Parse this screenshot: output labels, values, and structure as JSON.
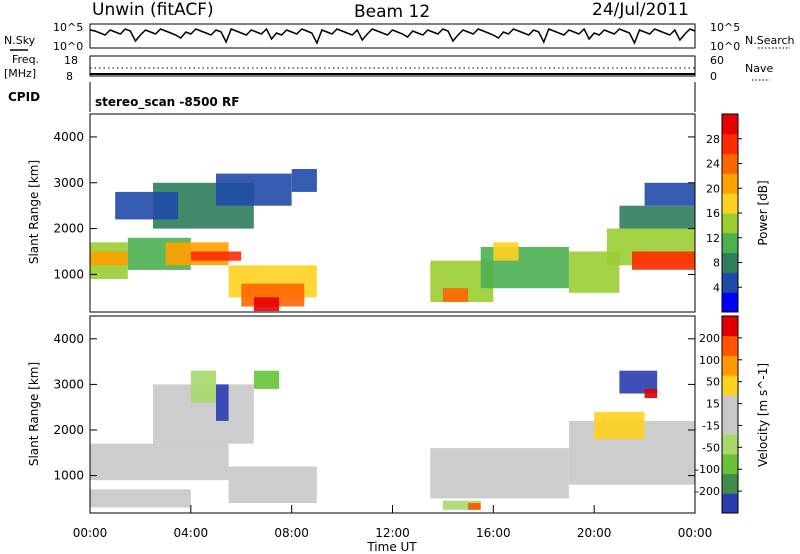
{
  "header": {
    "radar": "Unwin (fitACF)",
    "beam": "Beam 12",
    "date": "24/Jul/2011"
  },
  "status_panel": {
    "nsky_label": "N.Sky",
    "nsearch_label": "N.Search",
    "nsky_ticks": [
      "10^5",
      "10^0"
    ],
    "freq_label": "Freq.",
    "freq_unit": "[MHz]",
    "freq_ticks": [
      "18",
      "8"
    ],
    "nave_ticks": [
      "60",
      "0"
    ],
    "nave_label": "Nave",
    "cpid_label": "CPID",
    "cpid_value": "stereo_scan -8500 RF"
  },
  "colorbars": {
    "power": {
      "label": "Power [dB]",
      "ticks": [
        "28",
        "24",
        "20",
        "16",
        "12",
        "8",
        "4"
      ],
      "colors": [
        "#0000ff",
        "#1f4aa8",
        "#2e7d5b",
        "#4caf50",
        "#9acd32",
        "#ffd21f",
        "#ffa000",
        "#ff6600",
        "#ff2a00",
        "#e60000"
      ]
    },
    "velocity": {
      "label": "Velocity [m s^-1]",
      "ticks": [
        "200",
        "100",
        "50",
        "15",
        "-15",
        "-50",
        "-100",
        "-200"
      ],
      "colors": [
        "#2a3cb0",
        "#3f8c4a",
        "#67c23a",
        "#a6d96a",
        "#c8c8c8",
        "#c8c8c8",
        "#ffd21f",
        "#ff9900",
        "#ff5500",
        "#e00000"
      ]
    }
  },
  "chart_data": [
    {
      "type": "heatmap",
      "name": "power",
      "ylabel": "Slant Range [km]",
      "xlim": [
        "00:00",
        "24:00"
      ],
      "ylim": [
        180,
        4500
      ],
      "yticks": [
        1000,
        2000,
        3000,
        4000
      ],
      "clim": [
        0,
        30
      ],
      "cells": [
        {
          "t0": 0.0,
          "t1": 1.5,
          "r0": 900,
          "r1": 1700,
          "v": 12
        },
        {
          "t0": 0.0,
          "t1": 1.5,
          "r0": 1200,
          "r1": 1500,
          "v": 18
        },
        {
          "t0": 1.5,
          "t1": 4.0,
          "r0": 1100,
          "r1": 1800,
          "v": 10
        },
        {
          "t0": 3.0,
          "t1": 5.5,
          "r0": 1200,
          "r1": 1700,
          "v": 20
        },
        {
          "t0": 4.0,
          "t1": 6.0,
          "r0": 1300,
          "r1": 1500,
          "v": 24
        },
        {
          "t0": 2.5,
          "t1": 6.5,
          "r0": 2000,
          "r1": 3000,
          "v": 6
        },
        {
          "t0": 1.0,
          "t1": 3.5,
          "r0": 2200,
          "r1": 2800,
          "v": 5
        },
        {
          "t0": 5.5,
          "t1": 9.0,
          "r0": 500,
          "r1": 1200,
          "v": 16
        },
        {
          "t0": 6.0,
          "t1": 8.5,
          "r0": 300,
          "r1": 800,
          "v": 22
        },
        {
          "t0": 6.5,
          "t1": 7.5,
          "r0": 200,
          "r1": 500,
          "v": 28
        },
        {
          "t0": 5.0,
          "t1": 8.0,
          "r0": 2500,
          "r1": 3200,
          "v": 5
        },
        {
          "t0": 8.0,
          "t1": 9.0,
          "r0": 2800,
          "r1": 3300,
          "v": 4
        },
        {
          "t0": 13.5,
          "t1": 16.0,
          "r0": 400,
          "r1": 1300,
          "v": 12
        },
        {
          "t0": 14.0,
          "t1": 15.0,
          "r0": 400,
          "r1": 700,
          "v": 22
        },
        {
          "t0": 15.5,
          "t1": 19.0,
          "r0": 700,
          "r1": 1600,
          "v": 9
        },
        {
          "t0": 16.0,
          "t1": 17.0,
          "r0": 1300,
          "r1": 1700,
          "v": 15
        },
        {
          "t0": 19.0,
          "t1": 21.0,
          "r0": 600,
          "r1": 1500,
          "v": 12
        },
        {
          "t0": 20.5,
          "t1": 24.0,
          "r0": 1200,
          "r1": 2000,
          "v": 14
        },
        {
          "t0": 21.5,
          "t1": 24.0,
          "r0": 1100,
          "r1": 1500,
          "v": 24
        },
        {
          "t0": 21.0,
          "t1": 24.0,
          "r0": 2000,
          "r1": 2500,
          "v": 6
        },
        {
          "t0": 22.0,
          "t1": 24.0,
          "r0": 2500,
          "r1": 3000,
          "v": 4
        }
      ]
    },
    {
      "type": "heatmap",
      "name": "velocity",
      "ylabel": "Slant Range [km]",
      "xlabel": "Time UT",
      "xlim": [
        "00:00",
        "24:00"
      ],
      "xticks": [
        "00:00",
        "04:00",
        "08:00",
        "12:00",
        "16:00",
        "20:00",
        "00:00"
      ],
      "ylim": [
        180,
        4500
      ],
      "yticks": [
        1000,
        2000,
        3000,
        4000
      ],
      "clim": [
        -250,
        250
      ],
      "cells": [
        {
          "t0": 0.0,
          "t1": 5.5,
          "r0": 900,
          "r1": 1700,
          "v": 0
        },
        {
          "t0": 2.5,
          "t1": 6.5,
          "r0": 1700,
          "r1": 3000,
          "v": 0
        },
        {
          "t0": 5.5,
          "t1": 9.0,
          "r0": 400,
          "r1": 1200,
          "v": 0
        },
        {
          "t0": 0.0,
          "t1": 4.0,
          "r0": 300,
          "r1": 700,
          "v": 40
        },
        {
          "t0": 4.0,
          "t1": 5.0,
          "r0": 2600,
          "r1": 3300,
          "v": -60
        },
        {
          "t0": 5.0,
          "t1": 5.5,
          "r0": 2200,
          "r1": 3000,
          "v": -220
        },
        {
          "t0": 6.5,
          "t1": 7.5,
          "r0": 2900,
          "r1": 3300,
          "v": -150
        },
        {
          "t0": 13.5,
          "t1": 19.0,
          "r0": 500,
          "r1": 1600,
          "v": 0
        },
        {
          "t0": 14.0,
          "t1": 15.5,
          "r0": 250,
          "r1": 450,
          "v": -60
        },
        {
          "t0": 15.0,
          "t1": 15.5,
          "r0": 250,
          "r1": 400,
          "v": 150
        },
        {
          "t0": 19.0,
          "t1": 24.0,
          "r0": 800,
          "r1": 2200,
          "v": 0
        },
        {
          "t0": 20.0,
          "t1": 22.0,
          "r0": 1800,
          "r1": 2400,
          "v": 60
        },
        {
          "t0": 21.0,
          "t1": 22.5,
          "r0": 2800,
          "r1": 3300,
          "v": -220
        },
        {
          "t0": 22.0,
          "t1": 22.5,
          "r0": 2700,
          "r1": 2900,
          "v": 200
        }
      ]
    }
  ]
}
